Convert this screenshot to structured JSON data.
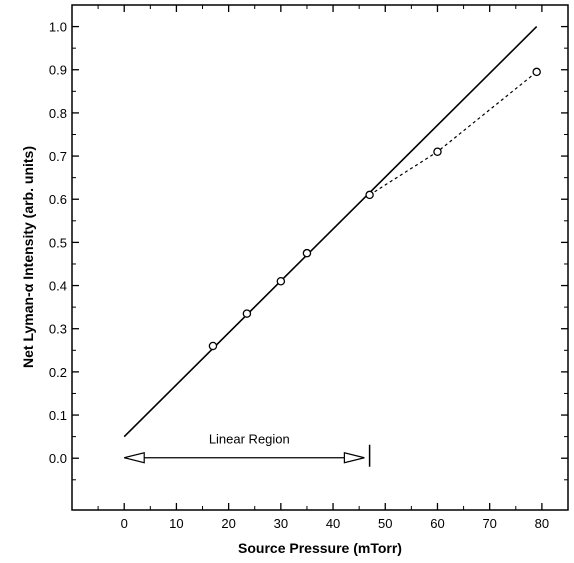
{
  "chart_data": {
    "type": "scatter",
    "xlabel": "Source Pressure (mTorr)",
    "ylabel": "Net Lyman-α Intensity (arb. units)",
    "xlim": [
      -10,
      85
    ],
    "ylim": [
      -0.12,
      1.05
    ],
    "x_ticks": [
      0,
      10,
      20,
      30,
      40,
      50,
      60,
      70,
      80
    ],
    "y_ticks": [
      0.0,
      0.1,
      0.2,
      0.3,
      0.4,
      0.5,
      0.6,
      0.7,
      0.8,
      0.9,
      1.0
    ],
    "x_tick_labels": [
      "0",
      "10",
      "20",
      "30",
      "40",
      "50",
      "60",
      "70",
      "80"
    ],
    "y_tick_labels": [
      "0.0",
      "0.1",
      "0.2",
      "0.3",
      "0.4",
      "0.5",
      "0.6",
      "0.7",
      "0.8",
      "0.9",
      "1.0"
    ],
    "grid": false,
    "series": [
      {
        "style": "points-open-circle",
        "x": [
          17,
          23.5,
          30,
          35,
          47,
          60,
          79
        ],
        "y": [
          0.26,
          0.335,
          0.41,
          0.475,
          0.61,
          0.71,
          0.895
        ]
      },
      {
        "style": "solid-line-fit",
        "x": [
          0,
          79
        ],
        "y": [
          0.05,
          1.0
        ]
      },
      {
        "style": "dashed-connector",
        "x": [
          47,
          60,
          79
        ],
        "y": [
          0.61,
          0.71,
          0.895
        ]
      }
    ],
    "annotations": {
      "linear_region": {
        "label": "Linear Region",
        "x_start": 0,
        "x_end": 46,
        "y": 0.015,
        "boundary_marker_x": 47
      }
    }
  }
}
